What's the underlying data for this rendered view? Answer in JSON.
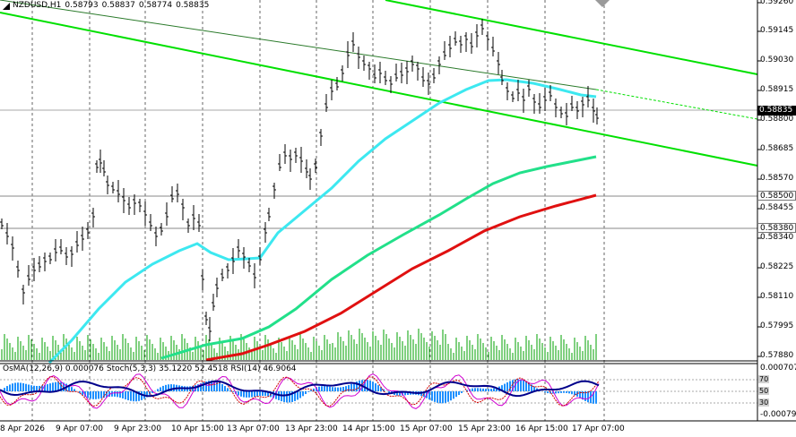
{
  "header": {
    "symbol": "NZDUSD,H1",
    "open": "0.58793",
    "high": "0.58837",
    "low": "0.58774",
    "close": "0.58835"
  },
  "indicator_header": {
    "osma": "OsMA(12,26,9) 0.000076",
    "stoch": "Stoch(5,3,3) 35.1220 52.4518",
    "rsi": "RSI(14) 46.9064"
  },
  "price_axis": [
    "0.59260",
    "0.59145",
    "0.59030",
    "0.58915",
    "0.58800",
    "0.58685",
    "0.58570",
    "0.58455",
    "0.58340",
    "0.58225",
    "0.58110",
    "0.57995",
    "0.57880"
  ],
  "current_price": "0.58835",
  "level_high": "0.58500",
  "level_low": "0.58380",
  "indicator_axis": {
    "top": "0.000707",
    "bottom": "-0.000790",
    "l70": "70",
    "l50": "50",
    "l30": "30"
  },
  "time_axis": [
    "8 Apr 2026",
    "9 Apr 07:00",
    "9 Apr 23:00",
    "10 Apr 15:00",
    "13 Apr 07:00",
    "13 Apr 23:00",
    "14 Apr 15:00",
    "15 Apr 07:00",
    "15 Apr 23:00",
    "16 Apr 15:00",
    "17 Apr 07:00"
  ],
  "colors": {
    "channel": "#00e000",
    "ma_fast": "#3de8f0",
    "ma_mid": "#22e08a",
    "ma_slow": "#e01010",
    "candles": "#000000",
    "osma": "#1e90ff",
    "stoch_main": "#d000d0",
    "stoch_signal": "#d00000",
    "rsi": "#00008b"
  }
}
